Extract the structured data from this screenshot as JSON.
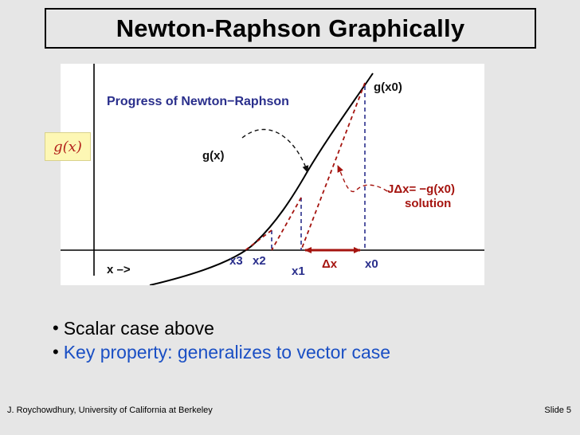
{
  "slide": {
    "title": "Newton-Raphson Graphically",
    "footer_left": "J. Roychowdhury, University of California at Berkeley",
    "footer_right": "Slide 5"
  },
  "figure": {
    "label_gx": "g(x)",
    "heading": "Progress of Newton−Raphson",
    "curve_label": "g(x)",
    "g_x0_label": "g(x0)",
    "equation_line1": "JΔx= −g(x0)",
    "equation_line2": "solution",
    "x_axis_label": "x –>",
    "points": {
      "x3": "x3",
      "x2": "x2",
      "x1": "x1",
      "x0": "x0"
    },
    "delta_x": "Δx",
    "colors": {
      "blue": "#2a2f8c",
      "red": "#a5140f",
      "label_bg": "#fdf7b4"
    }
  },
  "bullets": [
    {
      "text": "Scalar case above",
      "color": "#000000"
    },
    {
      "text": "Key property: generalizes to vector case",
      "color": "#1a4fc4"
    }
  ]
}
